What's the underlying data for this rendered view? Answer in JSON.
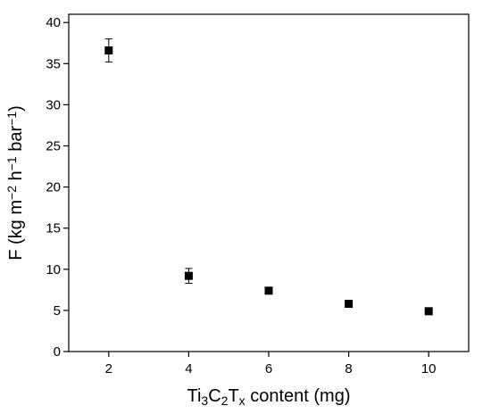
{
  "chart_data": {
    "type": "scatter",
    "title": "",
    "xlabel": {
      "parts": [
        {
          "text": "Ti"
        },
        {
          "text": "3",
          "sub": true
        },
        {
          "text": "C"
        },
        {
          "text": "2",
          "sub": true
        },
        {
          "text": "T"
        },
        {
          "text": "x",
          "sub": true
        },
        {
          "text": " content (mg)"
        }
      ]
    },
    "ylabel": {
      "parts": [
        {
          "text": "F (kg m"
        },
        {
          "text": "−2",
          "sup": true
        },
        {
          "text": " h"
        },
        {
          "text": "−1",
          "sup": true
        },
        {
          "text": " bar"
        },
        {
          "text": "−1",
          "sup": true
        },
        {
          "text": ")"
        }
      ]
    },
    "xlim": [
      1,
      11
    ],
    "ylim": [
      0,
      41
    ],
    "xticks": [
      2,
      4,
      6,
      8,
      10
    ],
    "xtick_labels": [
      "2",
      "4",
      "6",
      "8",
      "10"
    ],
    "yticks": [
      0,
      5,
      10,
      15,
      20,
      25,
      30,
      35,
      40
    ],
    "ytick_labels": [
      "0",
      "5",
      "10",
      "15",
      "20",
      "25",
      "30",
      "35",
      "40"
    ],
    "grid": false,
    "series": [
      {
        "color": "#000000",
        "marker": "square",
        "points": [
          {
            "x": 2,
            "y": 36.6,
            "err": 1.4
          },
          {
            "x": 4,
            "y": 9.2,
            "err": 0.9
          },
          {
            "x": 6,
            "y": 7.4,
            "err": 0.3
          },
          {
            "x": 8,
            "y": 5.8,
            "err": 0.3
          },
          {
            "x": 10,
            "y": 4.9,
            "err": 0.4
          }
        ]
      }
    ]
  }
}
